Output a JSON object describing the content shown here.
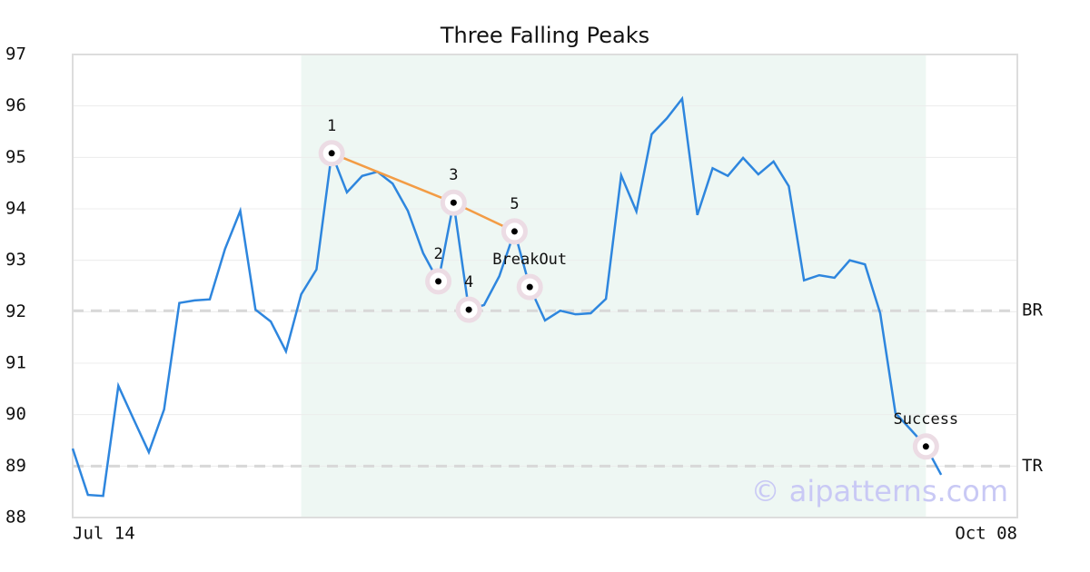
{
  "chart_data": {
    "type": "line",
    "title": "Three Falling Peaks",
    "x": [
      0,
      1,
      2,
      3,
      4,
      5,
      6,
      7,
      8,
      9,
      10,
      11,
      12,
      13,
      14,
      15,
      16,
      17,
      18,
      19,
      20,
      21,
      22,
      23,
      24,
      25,
      26,
      27,
      28,
      29,
      30,
      31,
      32,
      33,
      34,
      35,
      36,
      37,
      38,
      39,
      40,
      41,
      42,
      43,
      44,
      45,
      46,
      47,
      48,
      49,
      50,
      51,
      52,
      53,
      54,
      55,
      56,
      57
    ],
    "series": [
      {
        "color": "#2e86de",
        "values": [
          89.34,
          88.44,
          88.42,
          90.56,
          89.91,
          89.27,
          90.1,
          92.17,
          92.22,
          92.24,
          93.22,
          93.96,
          92.04,
          91.81,
          91.23,
          92.34,
          92.82,
          95.08,
          94.32,
          94.64,
          94.72,
          94.49,
          93.96,
          93.14,
          92.59,
          94.12,
          92.04,
          92.13,
          92.69,
          93.56,
          92.48,
          91.83,
          92.02,
          91.95,
          91.97,
          92.25,
          94.65,
          93.95,
          95.45,
          95.76,
          96.14,
          93.88,
          94.79,
          94.64,
          94.99,
          94.67,
          94.92,
          94.44,
          92.61,
          92.71,
          92.66,
          93.0,
          92.92,
          91.97,
          90.03,
          89.71,
          89.38,
          88.83
        ]
      }
    ],
    "xlim": [
      0,
      62
    ],
    "xticks": [
      {
        "value": 0,
        "label": "Jul 14"
      },
      {
        "value": 62,
        "label": "Oct 08"
      }
    ],
    "ylim": [
      88,
      97
    ],
    "yticks": [
      88,
      89,
      90,
      91,
      92,
      93,
      94,
      95,
      96,
      97
    ],
    "grid": true,
    "shaded_span": [
      15,
      56
    ],
    "pattern_line": {
      "color": "#f39c45",
      "points": [
        17,
        25,
        29
      ]
    },
    "annotations": [
      {
        "label": "1",
        "x": 17
      },
      {
        "label": "2",
        "x": 24
      },
      {
        "label": "3",
        "x": 25
      },
      {
        "label": "4",
        "x": 26
      },
      {
        "label": "5",
        "x": 29
      },
      {
        "label": "BreakOut",
        "x": 30
      },
      {
        "label": "Success",
        "x": 56
      }
    ],
    "reference_lines": [
      {
        "label": "BR",
        "value": 92.02
      },
      {
        "label": "TR",
        "value": 89.0
      }
    ],
    "watermark": "© aipatterns.com"
  }
}
